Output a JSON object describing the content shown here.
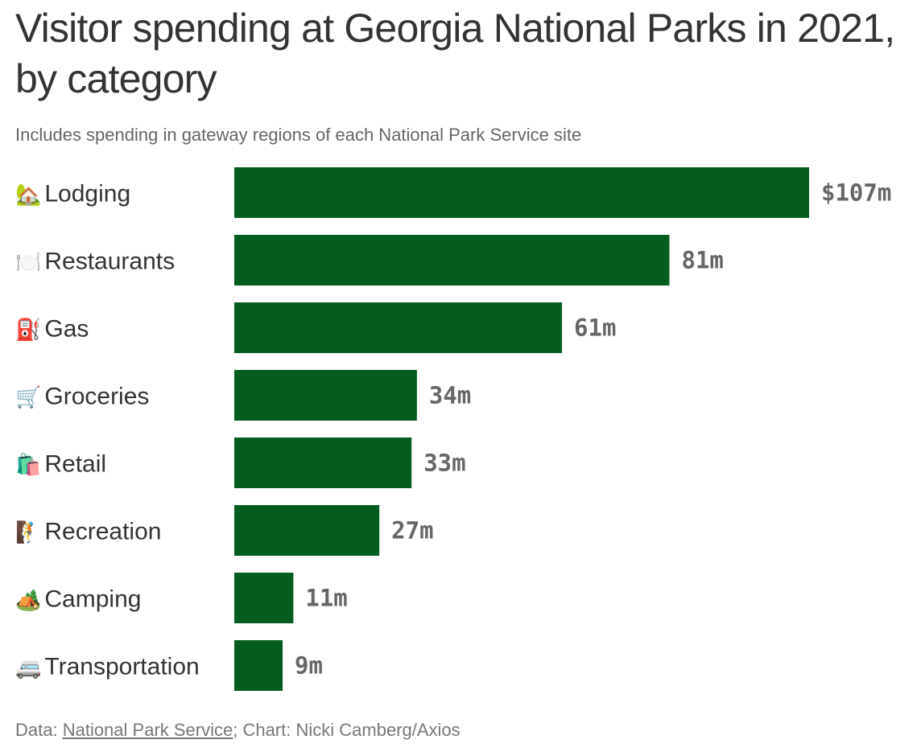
{
  "title": "Visitor spending at Georgia National Parks in 2021, by category",
  "subtitle": "Includes spending in gateway regions of each National Park Service site",
  "footer": {
    "data_prefix": "Data: ",
    "source_link": "National Park Service",
    "credit": "; Chart: Nicki Camberg/Axios"
  },
  "colors": {
    "bar": "#045d1f",
    "text": "#333333",
    "muted": "#666666"
  },
  "chart_data": {
    "type": "bar",
    "orientation": "horizontal",
    "categories": [
      "Lodging",
      "Restaurants",
      "Gas",
      "Groceries",
      "Retail",
      "Recreation",
      "Camping",
      "Transportation"
    ],
    "category_icons": [
      "🏡",
      "🍽️",
      "⛽",
      "🛒",
      "🛍️",
      "🧗",
      "🏕️",
      "🚐"
    ],
    "values": [
      107,
      81,
      61,
      34,
      33,
      27,
      11,
      9
    ],
    "value_labels": [
      "$107m",
      "81m",
      "61m",
      "34m",
      "33m",
      "27m",
      "11m",
      "9m"
    ],
    "unit": "millions of dollars",
    "xlim": [
      0,
      107
    ],
    "grid": false,
    "legend": "none"
  }
}
